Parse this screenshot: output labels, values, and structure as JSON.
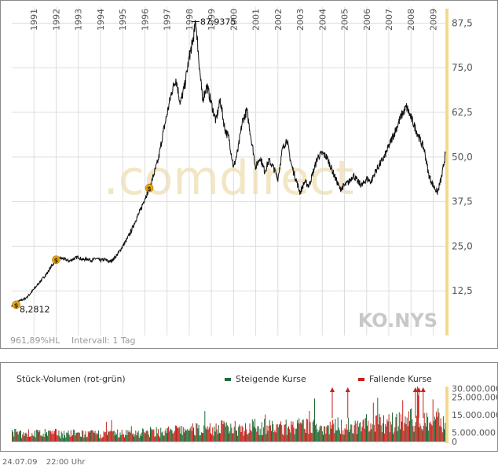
{
  "chart_data": [
    {
      "type": "line",
      "symbol": "KO.NYS",
      "watermark": ".comdirect",
      "x_years": [
        "1991",
        "1992",
        "1993",
        "1994",
        "1995",
        "1996",
        "1997",
        "1998",
        "1999",
        "2000",
        "2001",
        "2002",
        "2003",
        "2004",
        "2005",
        "2006",
        "2007",
        "2008",
        "2009"
      ],
      "y_ticks": [
        {
          "value": 12.5,
          "label": "12,5"
        },
        {
          "value": 25,
          "label": "25,0"
        },
        {
          "value": 37.5,
          "label": "37,5"
        },
        {
          "value": 50,
          "label": "50,0"
        },
        {
          "value": 62.5,
          "label": "62,5"
        },
        {
          "value": 75,
          "label": "75,0"
        },
        {
          "value": 87.5,
          "label": "87,5"
        }
      ],
      "ylim": [
        0,
        92
      ],
      "xlim": [
        1990.0,
        2009.55
      ],
      "series": [
        {
          "x": [
            1990.0,
            1990.2,
            1990.4,
            1990.6,
            1990.8,
            1991.0,
            1991.2,
            1991.4,
            1991.6,
            1991.8,
            1992.0,
            1992.2,
            1992.4,
            1992.6,
            1992.8,
            1993.0,
            1993.2,
            1993.4,
            1993.6,
            1993.8,
            1994.0,
            1994.2,
            1994.4,
            1994.6,
            1994.8,
            1995.0,
            1995.2,
            1995.4,
            1995.6,
            1995.8,
            1996.0,
            1996.2,
            1996.4,
            1996.6,
            1996.8,
            1997.0,
            1997.2,
            1997.4,
            1997.6,
            1997.8,
            1998.0,
            1998.15,
            1998.3,
            1998.45,
            1998.6,
            1998.8,
            1999.0,
            1999.2,
            1999.4,
            1999.6,
            1999.8,
            2000.0,
            2000.2,
            2000.4,
            2000.6,
            2000.8,
            2001.0,
            2001.2,
            2001.4,
            2001.6,
            2001.8,
            2002.0,
            2002.2,
            2002.4,
            2002.6,
            2002.8,
            2003.0,
            2003.2,
            2003.4,
            2003.6,
            2003.8,
            2004.0,
            2004.2,
            2004.4,
            2004.6,
            2004.8,
            2005.0,
            2005.2,
            2005.4,
            2005.6,
            2005.8,
            2006.0,
            2006.2,
            2006.4,
            2006.6,
            2006.8,
            2007.0,
            2007.2,
            2007.4,
            2007.6,
            2007.8,
            2008.0,
            2008.2,
            2008.4,
            2008.6,
            2008.8,
            2009.0,
            2009.2,
            2009.4,
            2009.55
          ],
          "y": [
            8.3,
            9.2,
            9.8,
            10.3,
            11.5,
            13.0,
            14.5,
            16.0,
            17.5,
            19.5,
            21.0,
            21.7,
            21.3,
            20.8,
            21.5,
            22.0,
            21.2,
            21.5,
            21.0,
            21.6,
            21.0,
            21.3,
            20.6,
            21.5,
            23.0,
            25.0,
            27.0,
            29.5,
            32.5,
            35.0,
            38.5,
            41.0,
            45.0,
            49.0,
            56.0,
            62.0,
            68.0,
            72.0,
            65.0,
            70.0,
            78.0,
            82.0,
            87.9,
            76.0,
            66.0,
            70.0,
            65.0,
            60.0,
            66.0,
            58.0,
            55.0,
            47.0,
            52.0,
            60.0,
            63.0,
            55.0,
            47.0,
            50.0,
            46.0,
            49.0,
            47.0,
            44.0,
            52.0,
            55.0,
            48.0,
            44.0,
            40.0,
            43.0,
            42.0,
            46.0,
            50.0,
            51.0,
            50.0,
            47.0,
            44.0,
            41.0,
            42.0,
            43.0,
            45.0,
            43.0,
            42.0,
            44.0,
            43.0,
            46.0,
            48.0,
            50.0,
            53.0,
            56.0,
            59.0,
            62.0,
            64.0,
            61.0,
            58.0,
            55.0,
            52.0,
            45.0,
            42.0,
            40.0,
            45.0,
            51.0
          ]
        }
      ],
      "annotations": [
        {
          "x": 1998.32,
          "y": 87.9375,
          "label": "87,9375"
        },
        {
          "x": 1990.0,
          "y": 8.2812,
          "label": "8,2812"
        }
      ],
      "dividend_markers": [
        {
          "x": 1990.2,
          "y": 8.6
        },
        {
          "x": 1992.0,
          "y": 21.2
        },
        {
          "x": 1996.2,
          "y": 41.3
        }
      ],
      "footer_stats": {
        "perf": "961,89%HL",
        "interval": "Intervall: 1 Tag"
      }
    },
    {
      "type": "bar",
      "title": "Stück-Volumen (rot-grün)",
      "legend": [
        {
          "label": "Steigende Kurse",
          "color": "#1f6b35"
        },
        {
          "label": "Fallende Kurse",
          "color": "#c8201a"
        }
      ],
      "y_ticks": [
        {
          "value": 0,
          "label": "0"
        },
        {
          "value": 5000000,
          "label": "5.000.000"
        },
        {
          "value": 15000000,
          "label": "15.000.000"
        },
        {
          "value": 25000000,
          "label": "25.000.000"
        },
        {
          "value": 30000000,
          "label": "30.000.000"
        }
      ],
      "ylim": [
        0,
        31000000
      ],
      "x_range": [
        1990.0,
        2009.55
      ],
      "volume_profile": {
        "x": [
          1990.0,
          1992.0,
          1994.0,
          1996.0,
          1998.0,
          2000.0,
          2002.0,
          2004.0,
          2006.0,
          2008.0,
          2009.55
        ],
        "avg": [
          4500000,
          4500000,
          4000000,
          5000000,
          6500000,
          8000000,
          8000000,
          8500000,
          9000000,
          12000000,
          12000000
        ]
      },
      "overflow_markers_x": [
        2004.45,
        2005.15,
        2008.2,
        2008.35,
        2008.55
      ]
    }
  ],
  "footer": {
    "date": "24.07.09",
    "time": "22:00 Uhr"
  },
  "colors": {
    "price": "#111111",
    "grid": "#dddddd",
    "highlight_band": "#f5d98a",
    "watermark": "#f2e6c4",
    "up": "#1f6b35",
    "down": "#c8201a",
    "marker": "#e8a317"
  }
}
